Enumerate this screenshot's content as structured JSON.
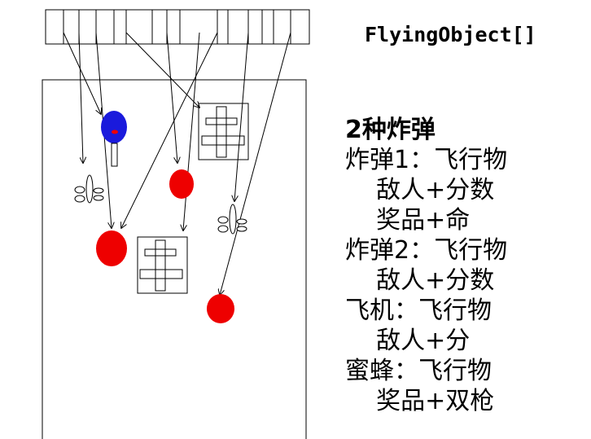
{
  "title": "FlyingObject[]",
  "notes": [
    "2种炸弹",
    "炸弹1：飞行物",
    "    敌人+分数",
    "    奖品+命",
    "炸弹2：飞行物",
    "    敌人+分数",
    "飞机：飞行物",
    "    敌人+分",
    "蜜蜂：飞行物",
    "    奖品+双枪"
  ],
  "colors": {
    "enemy_red": "#ee0000",
    "hero_blue": "#1a1adc",
    "ink": "#000000"
  }
}
